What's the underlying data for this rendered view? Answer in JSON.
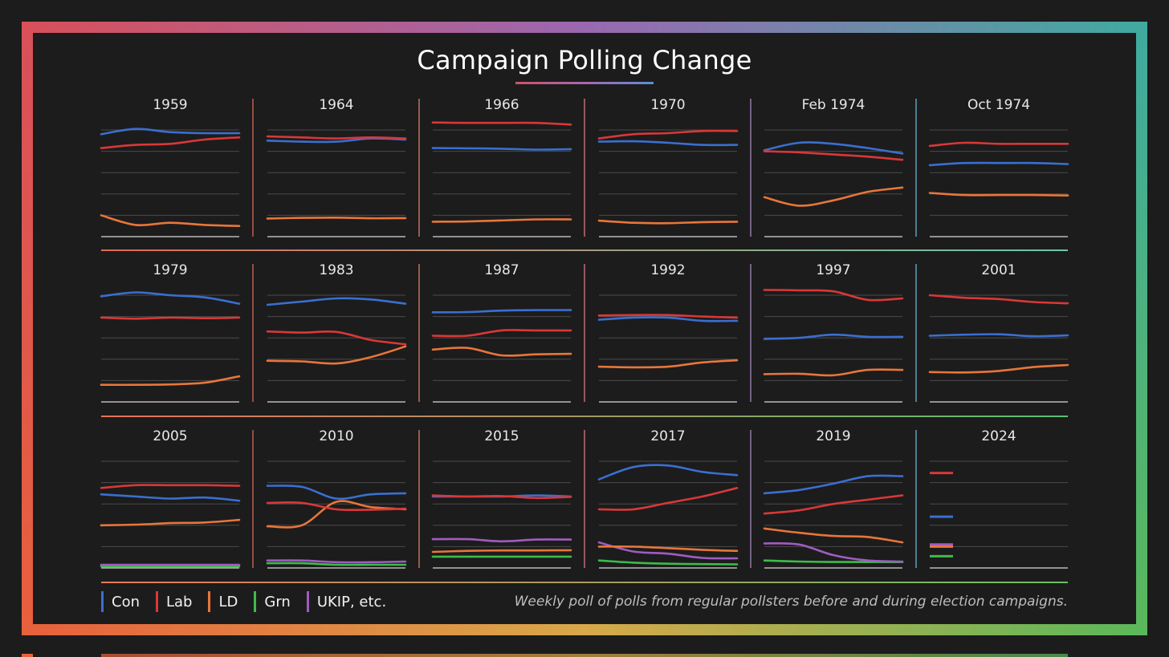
{
  "title": "Campaign Polling Change",
  "note": "Weekly poll of polls from regular pollsters before and during election campaigns.",
  "legend": [
    {
      "label": "Con",
      "color": "#3a6fd0"
    },
    {
      "label": "Lab",
      "color": "#d83838"
    },
    {
      "label": "LD",
      "color": "#e8763a"
    },
    {
      "label": "Grn",
      "color": "#3dbb4c"
    },
    {
      "label": "UKIP, etc.",
      "color": "#a05cc0"
    }
  ],
  "chart_data": {
    "type": "line",
    "title": "Campaign Polling Change",
    "ylim": [
      0,
      50
    ],
    "grid": true,
    "xlabel": "",
    "ylabel": "",
    "colors": {
      "Con": "#3a6fd0",
      "Lab": "#d83838",
      "LD": "#e8763a",
      "Grn": "#3dbb4c",
      "UKIP": "#a05cc0"
    },
    "panels": [
      {
        "label": "1959",
        "series": [
          {
            "name": "Con",
            "values": [
              48,
              50.5,
              49,
              48.5,
              48.5
            ]
          },
          {
            "name": "Lab",
            "values": [
              41.5,
              43,
              43.5,
              45.5,
              46.5
            ]
          },
          {
            "name": "LD",
            "values": [
              10,
              5.5,
              6.5,
              5.5,
              5
            ]
          }
        ]
      },
      {
        "label": "1964",
        "series": [
          {
            "name": "Con",
            "values": [
              45,
              44.5,
              44.5,
              46,
              45.5
            ]
          },
          {
            "name": "Lab",
            "values": [
              47,
              46.5,
              46,
              46.5,
              46
            ]
          },
          {
            "name": "LD",
            "values": [
              8.5,
              8.8,
              8.9,
              8.6,
              8.7
            ]
          }
        ]
      },
      {
        "label": "1966",
        "series": [
          {
            "name": "Con",
            "values": [
              41.5,
              41.4,
              41.2,
              40.8,
              41
            ]
          },
          {
            "name": "Lab",
            "values": [
              53.5,
              53.3,
              53.3,
              53.3,
              52.5
            ]
          },
          {
            "name": "LD",
            "values": [
              7,
              7.1,
              7.6,
              8.1,
              8.1
            ]
          }
        ]
      },
      {
        "label": "1970",
        "series": [
          {
            "name": "Con",
            "values": [
              44.5,
              44.7,
              44,
              43,
              43
            ]
          },
          {
            "name": "Lab",
            "values": [
              46,
              48,
              48.5,
              49.5,
              49.5
            ]
          },
          {
            "name": "LD",
            "values": [
              7.5,
              6.5,
              6.3,
              6.8,
              7
            ]
          }
        ]
      },
      {
        "label": "Feb 1974",
        "series": [
          {
            "name": "Con",
            "values": [
              40.5,
              44,
              43.5,
              41.5,
              39
            ]
          },
          {
            "name": "Lab",
            "values": [
              40,
              39.5,
              38.5,
              37.5,
              36
            ]
          },
          {
            "name": "LD",
            "values": [
              18.5,
              14.5,
              17,
              21,
              23
            ]
          }
        ]
      },
      {
        "label": "Oct 1974",
        "series": [
          {
            "name": "Con",
            "values": [
              33.5,
              34.5,
              34.5,
              34.5,
              34
            ]
          },
          {
            "name": "Lab",
            "values": [
              42.5,
              44,
              43.5,
              43.5,
              43.5
            ]
          },
          {
            "name": "LD",
            "values": [
              20.5,
              19.5,
              19.5,
              19.5,
              19.3
            ]
          }
        ]
      },
      {
        "label": "1979",
        "series": [
          {
            "name": "Con",
            "values": [
              49.5,
              51.3,
              50,
              49,
              46
            ]
          },
          {
            "name": "Lab",
            "values": [
              39.5,
              39,
              39.5,
              39.2,
              39.5
            ]
          },
          {
            "name": "LD",
            "values": [
              8,
              8,
              8.2,
              9,
              12
            ]
          }
        ]
      },
      {
        "label": "1983",
        "series": [
          {
            "name": "Con",
            "values": [
              45.5,
              47,
              48.5,
              48,
              46
            ]
          },
          {
            "name": "Lab",
            "values": [
              33,
              32.5,
              32.8,
              29,
              27
            ]
          },
          {
            "name": "LD",
            "values": [
              19.3,
              19,
              18,
              21,
              26
            ]
          }
        ]
      },
      {
        "label": "1987",
        "series": [
          {
            "name": "Con",
            "values": [
              42,
              42.1,
              42.8,
              43,
              43
            ]
          },
          {
            "name": "Lab",
            "values": [
              31,
              31,
              33.5,
              33.5,
              33.5
            ]
          },
          {
            "name": "LD",
            "values": [
              24.5,
              25.3,
              21.8,
              22.3,
              22.5
            ]
          }
        ]
      },
      {
        "label": "1992",
        "series": [
          {
            "name": "Con",
            "values": [
              38.5,
              39.5,
              39.5,
              38,
              38
            ]
          },
          {
            "name": "Lab",
            "values": [
              40.5,
              40.7,
              40.7,
              40,
              39.5
            ]
          },
          {
            "name": "LD",
            "values": [
              16.5,
              16.2,
              16.5,
              18.5,
              19.5
            ]
          }
        ]
      },
      {
        "label": "1997",
        "series": [
          {
            "name": "Con",
            "values": [
              29.5,
              30,
              31.5,
              30.5,
              30.5
            ]
          },
          {
            "name": "Lab",
            "values": [
              52.5,
              52.3,
              51.8,
              47.8,
              48.5
            ]
          },
          {
            "name": "LD",
            "values": [
              13,
              13.2,
              12.5,
              15,
              15
            ]
          }
        ]
      },
      {
        "label": "2001",
        "series": [
          {
            "name": "Con",
            "values": [
              31,
              31.5,
              31.7,
              30.8,
              31.2
            ]
          },
          {
            "name": "Lab",
            "values": [
              50,
              48.8,
              48.2,
              46.8,
              46.2
            ]
          },
          {
            "name": "LD",
            "values": [
              14,
              13.8,
              14.5,
              16.3,
              17.3
            ]
          }
        ]
      },
      {
        "label": "2005",
        "series": [
          {
            "name": "Con",
            "values": [
              34.5,
              33.5,
              32.5,
              33,
              31.5
            ]
          },
          {
            "name": "Lab",
            "values": [
              37.5,
              38.8,
              38.8,
              38.8,
              38.5
            ]
          },
          {
            "name": "LD",
            "values": [
              20,
              20.3,
              21,
              21.3,
              22.5
            ]
          },
          {
            "name": "UKIP",
            "values": [
              1.5,
              1.5,
              1.5,
              1.5,
              1.5
            ]
          },
          {
            "name": "Grn",
            "values": [
              0.8,
              0.8,
              0.8,
              0.8,
              0.8
            ]
          }
        ]
      },
      {
        "label": "2010",
        "series": [
          {
            "name": "Con",
            "values": [
              38.5,
              38,
              32.5,
              34.5,
              35
            ]
          },
          {
            "name": "Lab",
            "values": [
              30.5,
              30.5,
              27.5,
              27.3,
              27.8
            ]
          },
          {
            "name": "LD",
            "values": [
              19.5,
              20,
              31,
              28.5,
              27.5
            ]
          },
          {
            "name": "UKIP",
            "values": [
              3.5,
              3.5,
              2.7,
              2.7,
              3
            ]
          },
          {
            "name": "Grn",
            "values": [
              2.2,
              2.2,
              1.5,
              1.5,
              1.5
            ]
          }
        ]
      },
      {
        "label": "2015",
        "series": [
          {
            "name": "Con",
            "values": [
              33.5,
              33.5,
              33.5,
              34,
              33.5
            ]
          },
          {
            "name": "Lab",
            "values": [
              34,
              33.5,
              33.7,
              32.8,
              33.3
            ]
          },
          {
            "name": "LD",
            "values": [
              7.5,
              8,
              8.2,
              8.2,
              8.3
            ]
          },
          {
            "name": "UKIP",
            "values": [
              13.5,
              13.5,
              12.5,
              13.3,
              13.3
            ]
          },
          {
            "name": "Grn",
            "values": [
              5.3,
              5.3,
              5.3,
              5.3,
              5.3
            ]
          }
        ]
      },
      {
        "label": "2017",
        "series": [
          {
            "name": "Con",
            "values": [
              41.5,
              47.3,
              48,
              45,
              43.5
            ]
          },
          {
            "name": "Lab",
            "values": [
              27.5,
              27.5,
              30.5,
              33.5,
              37.5
            ]
          },
          {
            "name": "LD",
            "values": [
              10,
              10,
              9.3,
              8.5,
              8
            ]
          },
          {
            "name": "UKIP",
            "values": [
              12,
              7.7,
              6.7,
              4.7,
              4.5
            ]
          },
          {
            "name": "Grn",
            "values": [
              3.5,
              2.5,
              2,
              1.8,
              1.7
            ]
          }
        ]
      },
      {
        "label": "2019",
        "series": [
          {
            "name": "Con",
            "values": [
              35,
              36.5,
              39.5,
              43,
              43
            ]
          },
          {
            "name": "Lab",
            "values": [
              25.5,
              27,
              30,
              32,
              34
            ]
          },
          {
            "name": "LD",
            "values": [
              18.5,
              16.5,
              15,
              14.5,
              12
            ]
          },
          {
            "name": "UKIP",
            "values": [
              11.5,
              11,
              6,
              3.5,
              3
            ]
          },
          {
            "name": "Grn",
            "values": [
              3.5,
              3,
              2.8,
              2.8,
              2.8
            ]
          }
        ]
      },
      {
        "label": "2024",
        "series": [
          {
            "name": "Lab",
            "values": [
              44.5
            ]
          },
          {
            "name": "Con",
            "values": [
              24
            ]
          },
          {
            "name": "UKIP",
            "values": [
              11
            ]
          },
          {
            "name": "LD",
            "values": [
              10
            ]
          },
          {
            "name": "Grn",
            "values": [
              5.5
            ]
          }
        ]
      }
    ]
  }
}
